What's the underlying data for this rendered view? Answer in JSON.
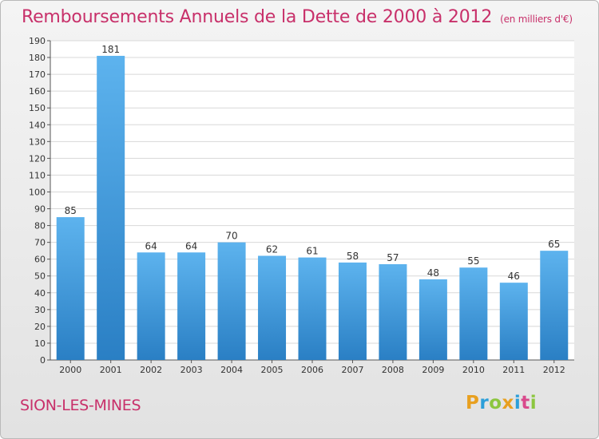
{
  "header": {
    "title": "Remboursements Annuels de la Dette de 2000 à 2012",
    "subtitle": "(en milliers d'€)"
  },
  "footer": {
    "commune": "SION-LES-MINES",
    "logo": {
      "letters": [
        "P",
        "r",
        "o",
        "x",
        "i",
        "t",
        "i"
      ],
      "colors": [
        "#e8a020",
        "#2c9fd9",
        "#8cc63f",
        "#e8a020",
        "#2c9fd9",
        "#d94a8c",
        "#8cc63f"
      ]
    }
  },
  "chart_data": {
    "type": "bar",
    "categories": [
      "2000",
      "2001",
      "2002",
      "2003",
      "2004",
      "2005",
      "2006",
      "2007",
      "2008",
      "2009",
      "2010",
      "2011",
      "2012"
    ],
    "values": [
      85,
      181,
      64,
      64,
      70,
      62,
      61,
      58,
      57,
      48,
      55,
      46,
      65
    ],
    "data_labels": [
      "85",
      "181",
      "64",
      "64",
      "70",
      "62",
      "61",
      "58",
      "57",
      "48",
      "55",
      "46",
      "65"
    ],
    "yticks": [
      0,
      10,
      20,
      30,
      40,
      50,
      60,
      70,
      80,
      90,
      100,
      110,
      120,
      130,
      140,
      150,
      160,
      170,
      180,
      190
    ],
    "ylim": [
      0,
      190
    ],
    "grid": true,
    "bar_color": "#3c98dc",
    "title_color": "#c8306a"
  }
}
